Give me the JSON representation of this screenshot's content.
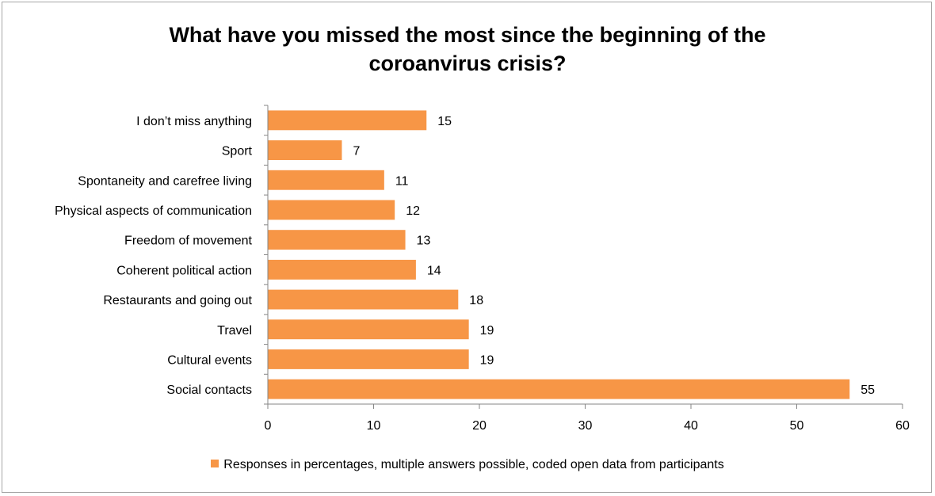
{
  "chart_data": {
    "type": "bar",
    "orientation": "horizontal",
    "title_line1": "What have you missed the most since the beginning of the",
    "title_line2": "coroanvirus crisis?",
    "categories": [
      "I don’t miss anything",
      "Sport",
      "Spontaneity and carefree living",
      "Physical aspects of communication",
      "Freedom of movement",
      "Coherent political action",
      "Restaurants and going out",
      "Travel",
      "Cultural events",
      "Social contacts"
    ],
    "series": [
      {
        "name": "Responses in percentages, multiple answers possible, coded open data from participants",
        "values": [
          15,
          7,
          11,
          12,
          13,
          14,
          18,
          19,
          19,
          55
        ]
      }
    ],
    "xlim": [
      0,
      60
    ],
    "xticks": [
      0,
      10,
      20,
      30,
      40,
      50,
      60
    ],
    "grid": false,
    "legend_position": "bottom",
    "bar_color": "#f79646",
    "axis_color": "#868686"
  }
}
